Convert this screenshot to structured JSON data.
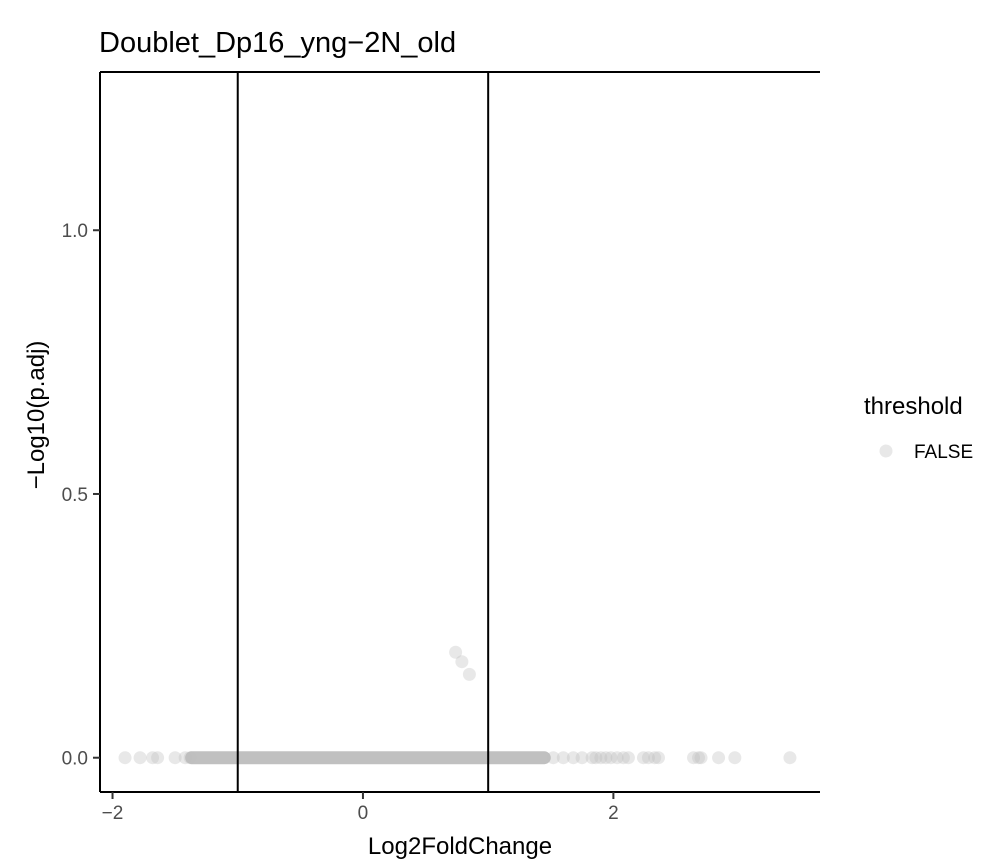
{
  "chart_data": {
    "type": "scatter",
    "title": "Doublet_Dp16_yng−2N_old",
    "xlabel": "Log2FoldChange",
    "ylabel": "−Log10(p.adj)",
    "xlim": [
      -2.1,
      3.65
    ],
    "ylim": [
      -0.065,
      1.3
    ],
    "x_ticks": [
      -2,
      0,
      2
    ],
    "x_tick_labels": [
      "−2",
      "0",
      "2"
    ],
    "y_ticks": [
      0.0,
      0.5,
      1.0
    ],
    "y_tick_labels": [
      "0.0",
      "0.5",
      "1.0"
    ],
    "grid": false,
    "reference_lines": {
      "vertical": [
        -1,
        1
      ],
      "horizontal": [
        1.3
      ]
    },
    "legend": {
      "title": "threshold",
      "position": "right",
      "entries": [
        {
          "label": "FALSE",
          "color": "#bdbdbd"
        }
      ]
    },
    "series": [
      {
        "name": "FALSE",
        "color": "#bdbdbd",
        "opacity": 0.35,
        "points": [
          [
            0.74,
            0.2
          ],
          [
            0.79,
            0.182
          ],
          [
            0.85,
            0.158
          ],
          [
            -1.9,
            0
          ],
          [
            -1.78,
            0
          ],
          [
            -1.68,
            0
          ],
          [
            -1.64,
            0
          ],
          [
            -1.5,
            0
          ],
          [
            -1.42,
            0
          ],
          [
            -1.38,
            0
          ],
          [
            1.52,
            0
          ],
          [
            1.6,
            0
          ],
          [
            1.68,
            0
          ],
          [
            1.75,
            0
          ],
          [
            1.83,
            0
          ],
          [
            1.86,
            0
          ],
          [
            1.9,
            0
          ],
          [
            1.94,
            0
          ],
          [
            1.98,
            0
          ],
          [
            2.03,
            0
          ],
          [
            2.08,
            0
          ],
          [
            2.12,
            0
          ],
          [
            2.24,
            0
          ],
          [
            2.28,
            0
          ],
          [
            2.33,
            0
          ],
          [
            2.36,
            0
          ],
          [
            2.64,
            0
          ],
          [
            2.68,
            0
          ],
          [
            2.7,
            0
          ],
          [
            2.84,
            0
          ],
          [
            2.97,
            0
          ],
          [
            3.41,
            0
          ]
        ],
        "dense_band": {
          "x_from": -1.42,
          "x_to": 1.5,
          "y": 0
        }
      }
    ]
  }
}
